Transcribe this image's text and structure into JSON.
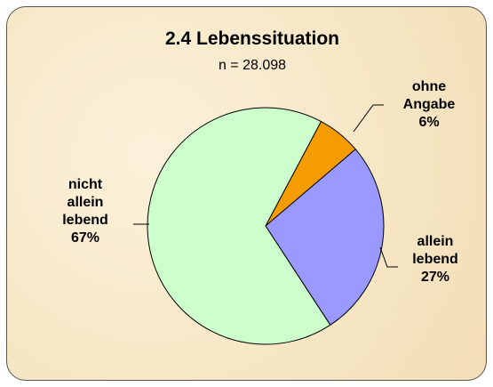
{
  "chart_data": {
    "type": "pie",
    "title": "2.4  Lebenssituation",
    "subtitle": "n = 28.098",
    "categories": [
      "ohne Angabe",
      "allein lebend",
      "nicht allein lebend"
    ],
    "values": [
      6,
      27,
      67
    ],
    "value_labels": [
      "6%",
      "27%",
      "67%"
    ],
    "colors": [
      "#f59c00",
      "#9999ff",
      "#ccffcc"
    ]
  }
}
